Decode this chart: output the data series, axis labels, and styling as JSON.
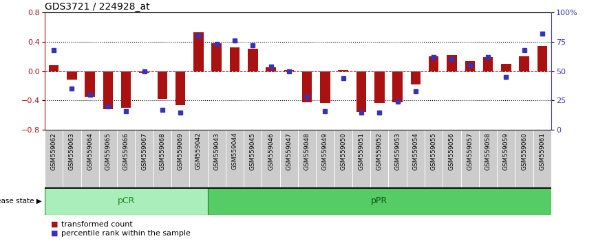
{
  "title": "GDS3721 / 224928_at",
  "samples": [
    "GSM559062",
    "GSM559063",
    "GSM559064",
    "GSM559065",
    "GSM559066",
    "GSM559067",
    "GSM559068",
    "GSM559069",
    "GSM559042",
    "GSM559043",
    "GSM559044",
    "GSM559045",
    "GSM559046",
    "GSM559047",
    "GSM559048",
    "GSM559049",
    "GSM559050",
    "GSM559051",
    "GSM559052",
    "GSM559053",
    "GSM559054",
    "GSM559055",
    "GSM559056",
    "GSM559057",
    "GSM559058",
    "GSM559059",
    "GSM559060",
    "GSM559061"
  ],
  "red_bars": [
    0.08,
    -0.12,
    -0.35,
    -0.52,
    -0.5,
    -0.02,
    -0.38,
    -0.46,
    0.53,
    0.38,
    0.32,
    0.3,
    0.05,
    0.01,
    -0.42,
    -0.43,
    0.01,
    -0.55,
    -0.43,
    -0.42,
    -0.18,
    0.2,
    0.22,
    0.14,
    0.19,
    0.1,
    0.2,
    0.34
  ],
  "blue_dots": [
    68,
    35,
    30,
    20,
    16,
    50,
    17,
    15,
    80,
    73,
    76,
    72,
    54,
    50,
    28,
    16,
    44,
    15,
    15,
    24,
    33,
    62,
    60,
    55,
    62,
    45,
    68,
    82
  ],
  "pCR_count": 9,
  "pPR_count": 19,
  "ylim_left": [
    -0.8,
    0.8
  ],
  "ylim_right": [
    0,
    100
  ],
  "yticks_left": [
    -0.8,
    -0.4,
    0.0,
    0.4,
    0.8
  ],
  "yticks_right": [
    0,
    25,
    50,
    75,
    100
  ],
  "red_color": "#AA1111",
  "blue_color": "#3333BB",
  "dashed_zero_color": "#CC0000",
  "legend_red": "transformed count",
  "legend_blue": "percentile rank within the sample",
  "pCR_label": "pCR",
  "pPR_label": "pPR",
  "disease_label": "disease state",
  "pCR_color": "#AAEEBB",
  "pPR_color": "#55CC66",
  "tick_bg_color": "#CCCCCC",
  "background_color": "#FFFFFF",
  "title_fontsize": 10
}
